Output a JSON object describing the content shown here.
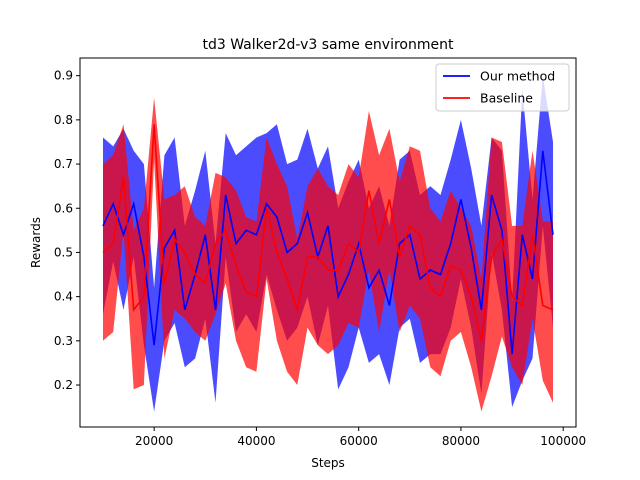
{
  "chart_data": {
    "type": "line",
    "title": "td3 Walker2d-v3 same environment",
    "xlabel": "Steps",
    "ylabel": "Rewards",
    "xlim": [
      5500,
      102500
    ],
    "ylim": [
      0.105,
      0.94
    ],
    "xticks": [
      20000,
      40000,
      60000,
      80000,
      100000
    ],
    "xtick_labels": [
      "20000",
      "40000",
      "60000",
      "80000",
      "100000"
    ],
    "yticks": [
      0.2,
      0.3,
      0.4,
      0.5,
      0.6,
      0.7,
      0.8,
      0.9
    ],
    "ytick_labels": [
      "0.2",
      "0.3",
      "0.4",
      "0.5",
      "0.6",
      "0.7",
      "0.8",
      "0.9"
    ],
    "grid": false,
    "legend_position": "top-right",
    "x": [
      10000,
      12000,
      14000,
      16000,
      18000,
      20000,
      22000,
      24000,
      26000,
      28000,
      30000,
      32000,
      34000,
      36000,
      38000,
      40000,
      42000,
      44000,
      46000,
      48000,
      50000,
      52000,
      54000,
      56000,
      58000,
      60000,
      62000,
      64000,
      66000,
      68000,
      70000,
      72000,
      74000,
      76000,
      78000,
      80000,
      82000,
      84000,
      86000,
      88000,
      90000,
      92000,
      94000,
      96000,
      98000
    ],
    "series": [
      {
        "name": "Our method",
        "color": "#0000ff",
        "values": [
          0.56,
          0.61,
          0.54,
          0.61,
          0.49,
          0.29,
          0.51,
          0.55,
          0.37,
          0.45,
          0.54,
          0.37,
          0.63,
          0.52,
          0.55,
          0.54,
          0.61,
          0.58,
          0.5,
          0.52,
          0.59,
          0.49,
          0.56,
          0.4,
          0.45,
          0.52,
          0.42,
          0.46,
          0.38,
          0.52,
          0.54,
          0.44,
          0.46,
          0.45,
          0.52,
          0.62,
          0.51,
          0.37,
          0.63,
          0.55,
          0.27,
          0.54,
          0.44,
          0.73,
          0.54
        ],
        "upper": [
          0.76,
          0.74,
          0.78,
          0.73,
          0.7,
          0.42,
          0.72,
          0.76,
          0.56,
          0.64,
          0.73,
          0.52,
          0.77,
          0.72,
          0.74,
          0.76,
          0.77,
          0.79,
          0.7,
          0.71,
          0.78,
          0.69,
          0.74,
          0.6,
          0.66,
          0.71,
          0.6,
          0.65,
          0.56,
          0.71,
          0.73,
          0.63,
          0.65,
          0.63,
          0.71,
          0.8,
          0.69,
          0.56,
          0.76,
          0.73,
          0.39,
          0.87,
          0.62,
          0.9,
          0.75
        ],
        "lower": [
          0.36,
          0.48,
          0.37,
          0.49,
          0.29,
          0.14,
          0.3,
          0.34,
          0.24,
          0.26,
          0.35,
          0.16,
          0.49,
          0.32,
          0.36,
          0.32,
          0.45,
          0.37,
          0.3,
          0.33,
          0.4,
          0.29,
          0.38,
          0.19,
          0.24,
          0.33,
          0.25,
          0.27,
          0.2,
          0.33,
          0.35,
          0.25,
          0.27,
          0.27,
          0.33,
          0.44,
          0.33,
          0.18,
          0.5,
          0.37,
          0.15,
          0.21,
          0.26,
          0.56,
          0.33
        ]
      },
      {
        "name": "Baseline",
        "color": "#ff0000",
        "values": [
          0.5,
          0.52,
          0.67,
          0.37,
          0.4,
          0.79,
          0.43,
          0.53,
          0.5,
          0.45,
          0.43,
          0.52,
          0.55,
          0.47,
          0.41,
          0.4,
          0.6,
          0.5,
          0.44,
          0.37,
          0.49,
          0.49,
          0.46,
          0.46,
          0.52,
          0.5,
          0.64,
          0.52,
          0.62,
          0.49,
          0.56,
          0.54,
          0.42,
          0.4,
          0.47,
          0.46,
          0.4,
          0.3,
          0.49,
          0.53,
          0.4,
          0.38,
          0.54,
          0.38,
          0.37
        ],
        "upper": [
          0.7,
          0.72,
          0.79,
          0.55,
          0.6,
          0.85,
          0.62,
          0.63,
          0.65,
          0.58,
          0.56,
          0.68,
          0.67,
          0.64,
          0.58,
          0.57,
          0.76,
          0.7,
          0.65,
          0.53,
          0.65,
          0.69,
          0.65,
          0.63,
          0.7,
          0.67,
          0.82,
          0.72,
          0.78,
          0.66,
          0.74,
          0.73,
          0.6,
          0.57,
          0.64,
          0.6,
          0.56,
          0.44,
          0.76,
          0.75,
          0.56,
          0.56,
          0.73,
          0.57,
          0.57
        ],
        "lower": [
          0.3,
          0.32,
          0.55,
          0.19,
          0.2,
          0.71,
          0.26,
          0.37,
          0.35,
          0.32,
          0.3,
          0.36,
          0.43,
          0.3,
          0.24,
          0.23,
          0.44,
          0.3,
          0.23,
          0.2,
          0.33,
          0.29,
          0.27,
          0.29,
          0.34,
          0.33,
          0.46,
          0.32,
          0.46,
          0.32,
          0.38,
          0.35,
          0.24,
          0.22,
          0.3,
          0.32,
          0.24,
          0.14,
          0.22,
          0.31,
          0.24,
          0.2,
          0.35,
          0.21,
          0.16
        ]
      }
    ]
  }
}
